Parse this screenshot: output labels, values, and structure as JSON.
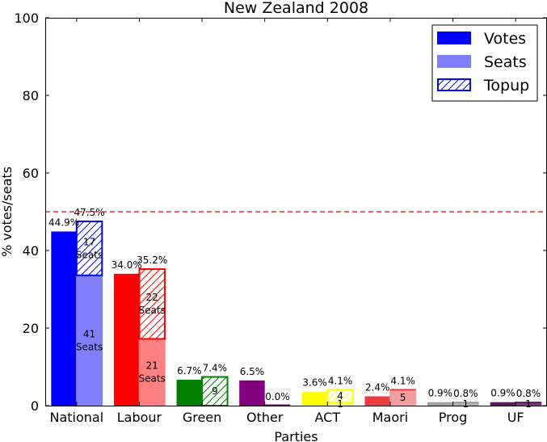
{
  "chart_data": {
    "type": "bar",
    "title": "New Zealand 2008",
    "xlabel": "Parties",
    "ylabel": "% votes/seats",
    "ylim": [
      0,
      100
    ],
    "yticks": [
      "0",
      "20",
      "40",
      "60",
      "80",
      "100"
    ],
    "majority_line": 50,
    "legend": {
      "placement": "top-right",
      "entries": [
        "Votes",
        "Seats",
        "Topup"
      ]
    },
    "parties": [
      {
        "name": "National",
        "votes": 44.9,
        "seats_pct": 47.5,
        "electorate_pct": 33.6,
        "votes_label": "44.9%",
        "seats_label": "47.5%",
        "topup_label": "17\nSeats",
        "electorate_label": "41\nSeats",
        "color": "#0000ff",
        "light_color": "#8080ff"
      },
      {
        "name": "Labour",
        "votes": 34.0,
        "seats_pct": 35.2,
        "electorate_pct": 17.2,
        "votes_label": "34.0%",
        "seats_label": "35.2%",
        "topup_label": "22\nSeats",
        "electorate_label": "21\nSeats",
        "color": "#ff0000",
        "light_color": "#ff8080"
      },
      {
        "name": "Green",
        "votes": 6.7,
        "seats_pct": 7.4,
        "electorate_pct": 0,
        "votes_label": "6.7%",
        "seats_label": "7.4%",
        "topup_label": "9",
        "electorate_label": "",
        "color": "#008000",
        "light_color": "#80c080"
      },
      {
        "name": "Other",
        "votes": 6.5,
        "seats_pct": 0.0,
        "electorate_pct": 0,
        "votes_label": "6.5%",
        "seats_label": "0.0%",
        "topup_label": "",
        "electorate_label": "",
        "color": "#800080",
        "light_color": "#c080c0"
      },
      {
        "name": "ACT",
        "votes": 3.6,
        "seats_pct": 4.1,
        "electorate_pct": 0.8,
        "votes_label": "3.6%",
        "seats_label": "4.1%",
        "topup_label": "4",
        "electorate_label": "1",
        "color": "#ffff00",
        "light_color": "#ffff80"
      },
      {
        "name": "Maori",
        "votes": 2.4,
        "seats_pct": 4.1,
        "electorate_pct": 4.1,
        "votes_label": "2.4%",
        "seats_label": "4.1%",
        "topup_label": "",
        "electorate_label": "5",
        "color": "#ee3b3b",
        "light_color": "#f49d9d"
      },
      {
        "name": "Prog",
        "votes": 0.9,
        "seats_pct": 0.8,
        "electorate_pct": 0.8,
        "votes_label": "0.9%",
        "seats_label": "0.8%",
        "topup_label": "",
        "electorate_label": "1",
        "color": "#a0a0a0",
        "light_color": "#b0b0b0"
      },
      {
        "name": "UF",
        "votes": 0.9,
        "seats_pct": 0.8,
        "electorate_pct": 0.8,
        "votes_label": "0.9%",
        "seats_label": "0.8%",
        "topup_label": "",
        "electorate_label": "1",
        "color": "#5a1a5a",
        "light_color": "#7a3a7a"
      }
    ]
  }
}
